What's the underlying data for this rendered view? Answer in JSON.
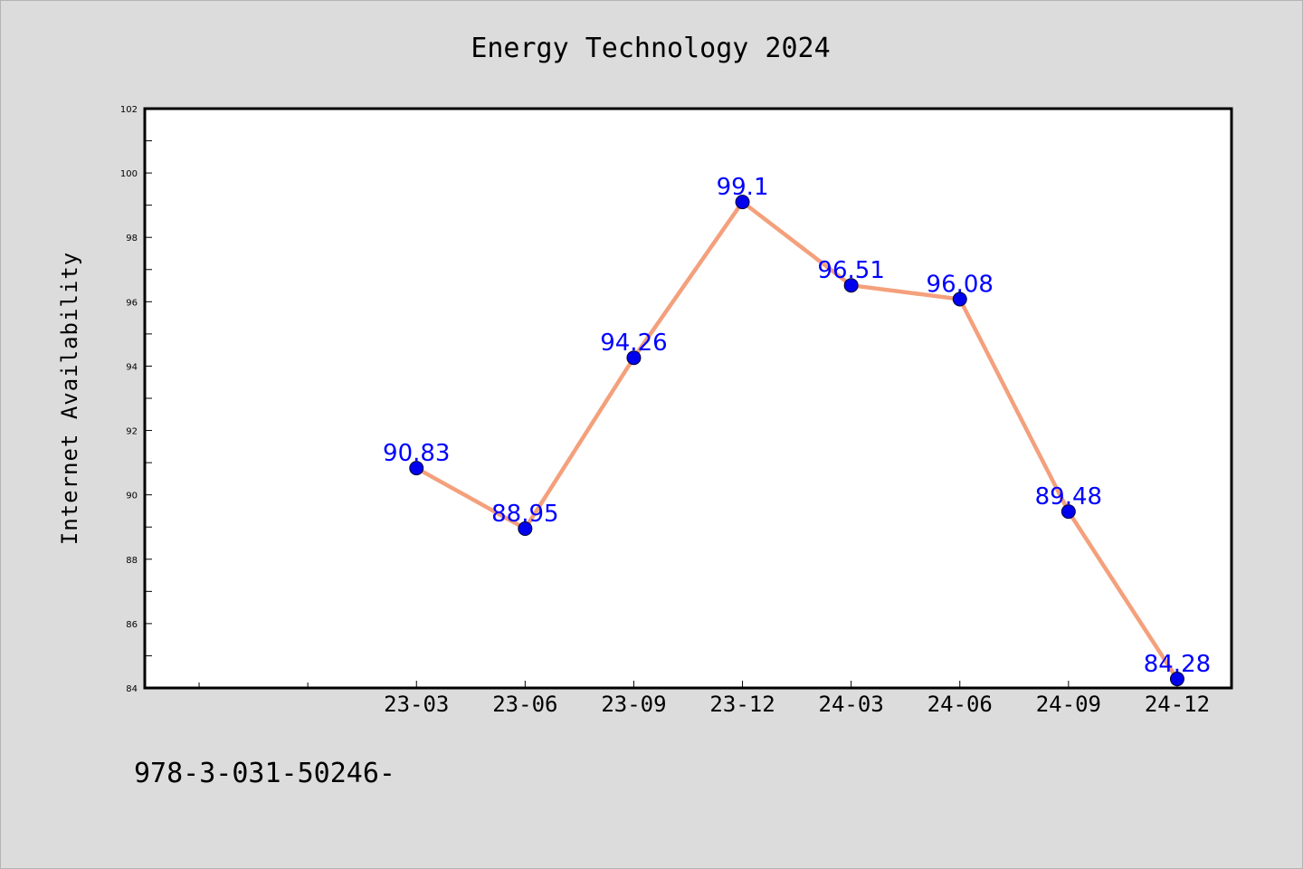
{
  "chart_data": {
    "type": "line",
    "title": "Energy Technology 2024",
    "xlabel": "",
    "ylabel": "Internet Availability",
    "x": [
      "23-03",
      "23-06",
      "23-09",
      "23-12",
      "24-03",
      "24-06",
      "24-09",
      "24-12"
    ],
    "series": [
      {
        "values": [
          90.83,
          88.95,
          94.26,
          99.1,
          96.51,
          96.08,
          89.48,
          84.28
        ],
        "labels": [
          "90.83",
          "88.95",
          "94.26",
          "99.1",
          "96.51",
          "96.08",
          "89.48",
          "84.28"
        ],
        "line_color": "#f4a07c",
        "marker_color": "#0000ee"
      }
    ],
    "ylim": [
      84,
      102
    ],
    "yticks": [
      "84",
      "86",
      "88",
      "90",
      "92",
      "94",
      "96",
      "98",
      "100",
      "102"
    ],
    "x_slot_count": 10,
    "x_first_data_slot": 2,
    "grid": false,
    "legend": "none",
    "label_color": "#0000ff",
    "background_color": "#dcdcdc",
    "plot_background": "#ffffff"
  },
  "footer_text": "978-3-031-50246-"
}
